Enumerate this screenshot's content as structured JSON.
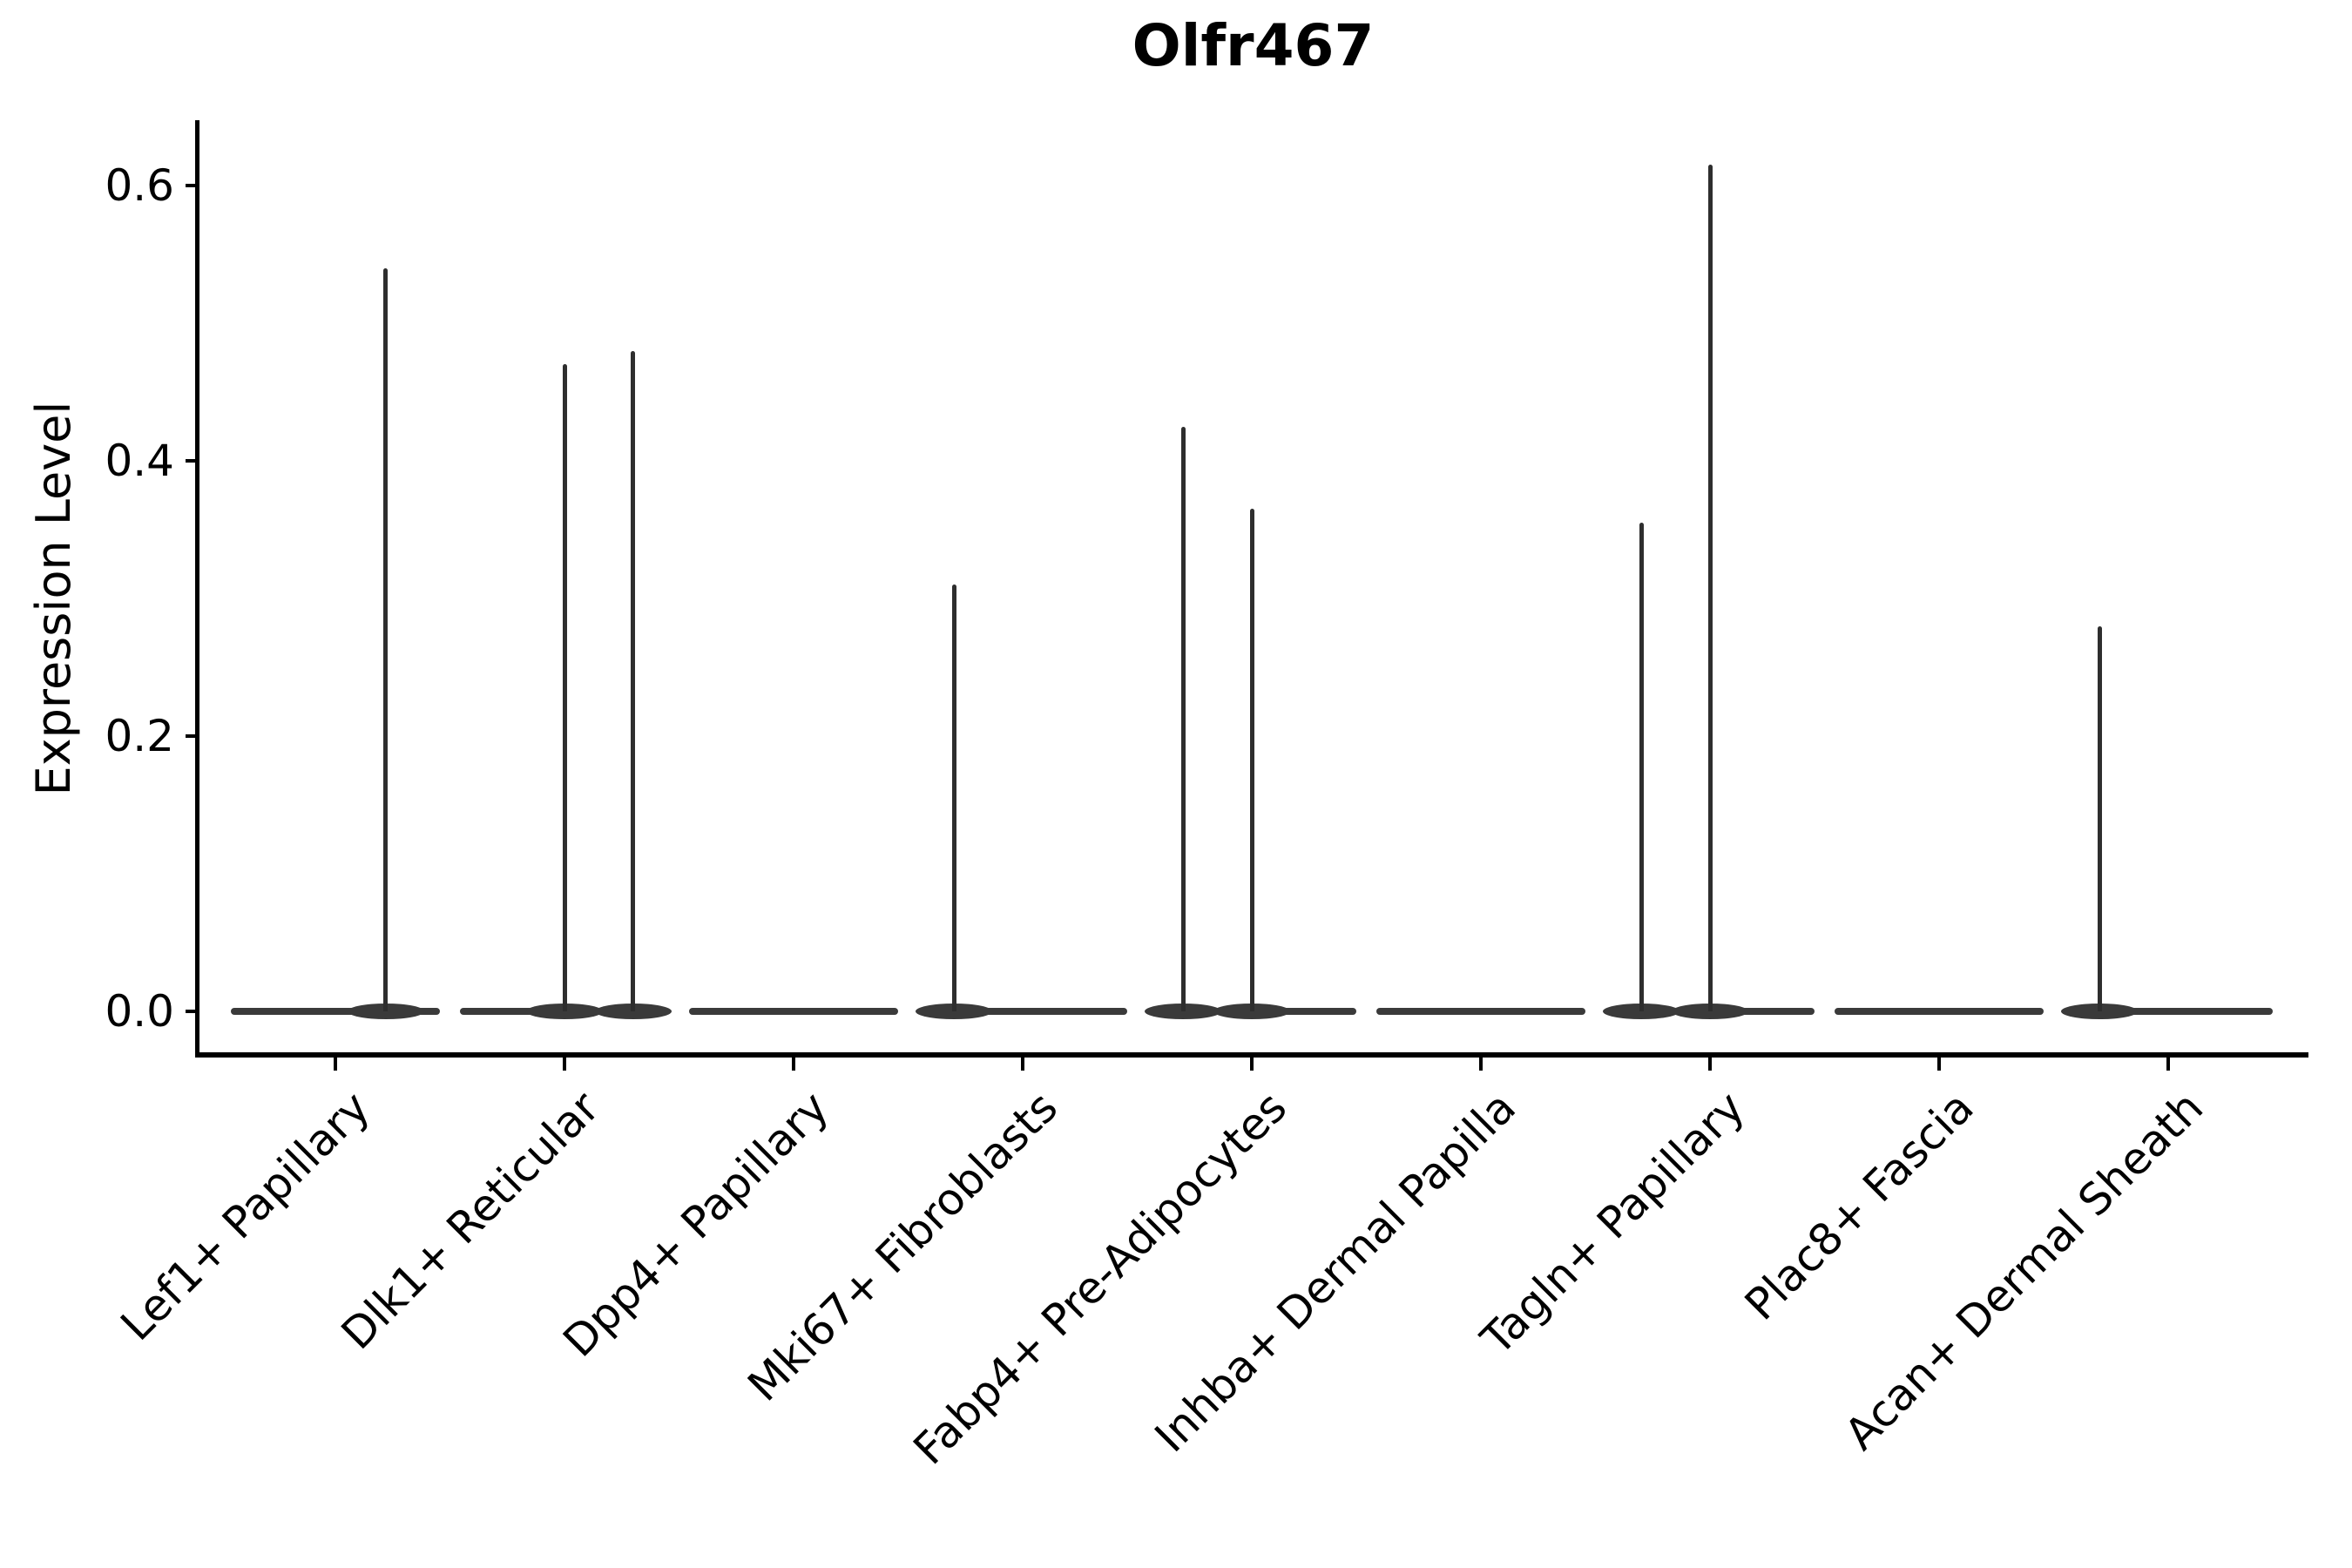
{
  "chart_data": {
    "type": "violin",
    "title": "Olfr467",
    "ylabel": "Expression Level",
    "xlabel": "",
    "ylim": [
      -0.032,
      0.647
    ],
    "grid": false,
    "legend": false,
    "yticks": [
      {
        "value": 0.0,
        "label": "0.0"
      },
      {
        "value": 0.2,
        "label": "0.2"
      },
      {
        "value": 0.4,
        "label": "0.4"
      },
      {
        "value": 0.6,
        "label": "0.6"
      }
    ],
    "categories": [
      "Lef1+ Papillary",
      "Dlk1+ Reticular",
      "Dpp4+ Papillary",
      "Mki67+ Fibroblasts",
      "Fabp4+ Pre-Adipocytes",
      "Inhba+ Dermal Papilla",
      "Tagln+ Papillary",
      "Plac8+ Fascia",
      "Acan+ Dermal Sheath"
    ],
    "series": [
      {
        "category": "Lef1+ Papillary",
        "zero_body": true,
        "spikes": [
          {
            "x_offset": 0.22,
            "value": 0.54
          }
        ]
      },
      {
        "category": "Dlk1+ Reticular",
        "zero_body": true,
        "spikes": [
          {
            "x_offset": 0.0,
            "value": 0.47
          },
          {
            "x_offset": 0.3,
            "value": 0.48
          }
        ]
      },
      {
        "category": "Dpp4+ Papillary",
        "zero_body": true,
        "spikes": []
      },
      {
        "category": "Mki67+ Fibroblasts",
        "zero_body": true,
        "spikes": [
          {
            "x_offset": -0.3,
            "value": 0.31
          }
        ]
      },
      {
        "category": "Fabp4+ Pre-Adipocytes",
        "zero_body": true,
        "spikes": [
          {
            "x_offset": -0.3,
            "value": 0.425
          },
          {
            "x_offset": 0.0,
            "value": 0.365
          }
        ]
      },
      {
        "category": "Inhba+ Dermal Papilla",
        "zero_body": true,
        "spikes": []
      },
      {
        "category": "Tagln+ Papillary",
        "zero_body": true,
        "spikes": [
          {
            "x_offset": -0.3,
            "value": 0.355
          },
          {
            "x_offset": 0.0,
            "value": 0.615
          }
        ]
      },
      {
        "category": "Plac8+ Fascia",
        "zero_body": true,
        "spikes": []
      },
      {
        "category": "Acan+ Dermal Sheath",
        "zero_body": true,
        "spikes": [
          {
            "x_offset": -0.3,
            "value": 0.28
          }
        ]
      }
    ],
    "colors": {
      "violin_body": "#3a3a3a",
      "spike": "#2e2e2e",
      "axis": "#000000",
      "text": "#000000",
      "background": "#ffffff"
    }
  }
}
